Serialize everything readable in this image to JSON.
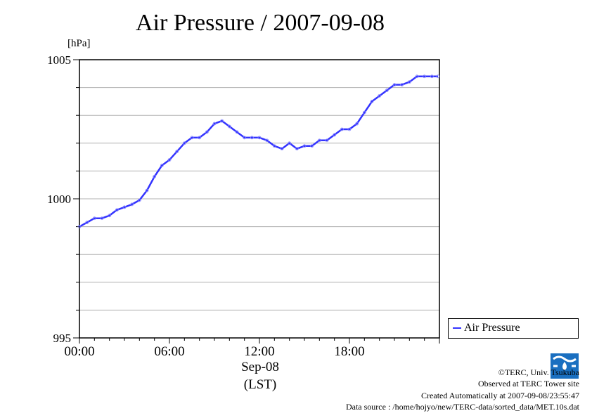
{
  "chart_data": {
    "type": "line",
    "title": "Air Pressure / 2007-09-08",
    "ylabel": "[hPa]",
    "xlabel": "Sep-08",
    "xlabel2": "(LST)",
    "ylim": [
      995,
      1005
    ],
    "xlim_hours": [
      0,
      24
    ],
    "yticks": [
      {
        "value": 1005,
        "label": "1005"
      },
      {
        "value": 1000,
        "label": "1000"
      },
      {
        "value": 995,
        "label": "995"
      }
    ],
    "xticks": [
      {
        "value": 0,
        "label": "00:00"
      },
      {
        "value": 6,
        "label": "06:00"
      },
      {
        "value": 12,
        "label": "12:00"
      },
      {
        "value": 18,
        "label": "18:00"
      }
    ],
    "grid": "horizontal every 1 hPa",
    "legend_placement": "right, below plot",
    "series": [
      {
        "name": "Air Pressure",
        "color": "#3333ff",
        "x_hours": [
          0,
          0.5,
          1,
          1.5,
          2,
          2.5,
          3,
          3.5,
          4,
          4.5,
          5,
          5.5,
          6,
          6.5,
          7,
          7.5,
          8,
          8.5,
          9,
          9.5,
          10,
          10.5,
          11,
          11.5,
          12,
          12.5,
          13,
          13.5,
          14,
          14.5,
          15,
          15.5,
          16,
          16.5,
          17,
          17.5,
          18,
          18.5,
          19,
          19.5,
          20,
          20.5,
          21,
          21.5,
          22,
          22.5,
          23,
          23.5,
          23.9
        ],
        "values": [
          999.0,
          999.15,
          999.3,
          999.3,
          999.4,
          999.6,
          999.7,
          999.8,
          999.95,
          1000.3,
          1000.8,
          1001.2,
          1001.4,
          1001.7,
          1002.0,
          1002.2,
          1002.2,
          1002.4,
          1002.7,
          1002.8,
          1002.6,
          1002.4,
          1002.2,
          1002.2,
          1002.2,
          1002.1,
          1001.9,
          1001.8,
          1002.0,
          1001.8,
          1001.9,
          1001.9,
          1002.1,
          1002.1,
          1002.3,
          1002.5,
          1002.5,
          1002.7,
          1003.1,
          1003.5,
          1003.7,
          1003.9,
          1004.1,
          1004.1,
          1004.2,
          1004.4,
          1004.4,
          1004.4,
          1004.4
        ]
      }
    ]
  },
  "legend": {
    "label": "Air Pressure"
  },
  "footer": {
    "copyright": "©TERC, Univ. Tsukuba",
    "observed": "Observed at TERC Tower site",
    "created": "Created Automatically at 2007-09-08/23:55:47",
    "source": "Data source : /home/hojyo/new/TERC-data/sorted_data/MET.10s.dat",
    "logo_text": "TERC"
  }
}
